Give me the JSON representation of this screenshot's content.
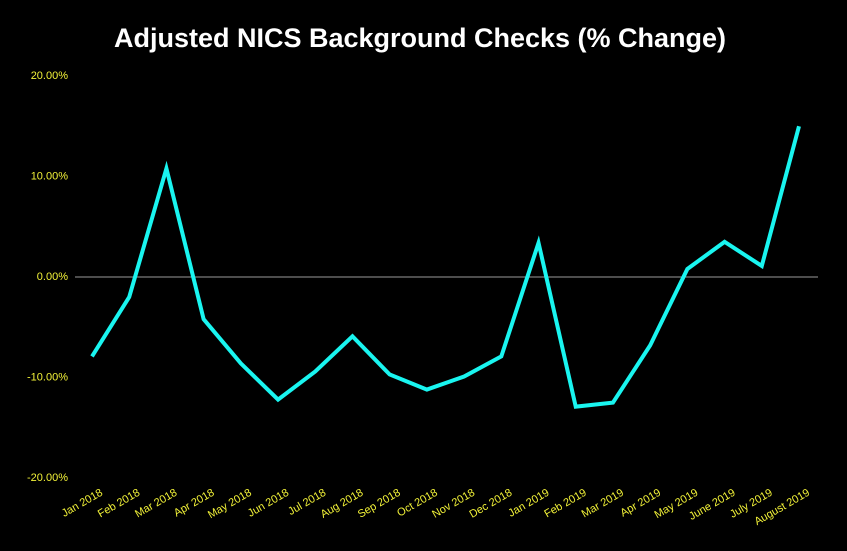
{
  "chart_data": {
    "type": "line",
    "title": "Adjusted NICS Background Checks (% Change)",
    "categories": [
      "Jan 2018",
      "Feb 2018",
      "Mar 2018",
      "Apr 2018",
      "May 2018",
      "Jun 2018",
      "Jul 2018",
      "Aug 2018",
      "Sep 2018",
      "Oct 2018",
      "Nov 2018",
      "Dec 2018",
      "Jan 2019",
      "Feb 2019",
      "Mar 2019",
      "Apr 2019",
      "May 2019",
      "June 2019",
      "July 2019",
      "August 2019"
    ],
    "series": [
      {
        "color": "#19f5f0",
        "values": [
          -7.9,
          -2.0,
          10.8,
          -4.2,
          -8.6,
          -12.2,
          -9.4,
          -5.9,
          -9.7,
          -11.2,
          -9.9,
          -7.9,
          3.4,
          -12.9,
          -12.5,
          -6.8,
          0.8,
          3.5,
          1.1,
          15.0
        ]
      }
    ],
    "ylim": [
      -20,
      20
    ],
    "yticks": [
      {
        "value": -20,
        "label": "-20.00%"
      },
      {
        "value": -10,
        "label": "-10.00%"
      },
      {
        "value": 0,
        "label": "0.00%"
      },
      {
        "value": 10,
        "label": "10.00%"
      },
      {
        "value": 20,
        "label": "20.00%"
      }
    ],
    "grid": false
  }
}
